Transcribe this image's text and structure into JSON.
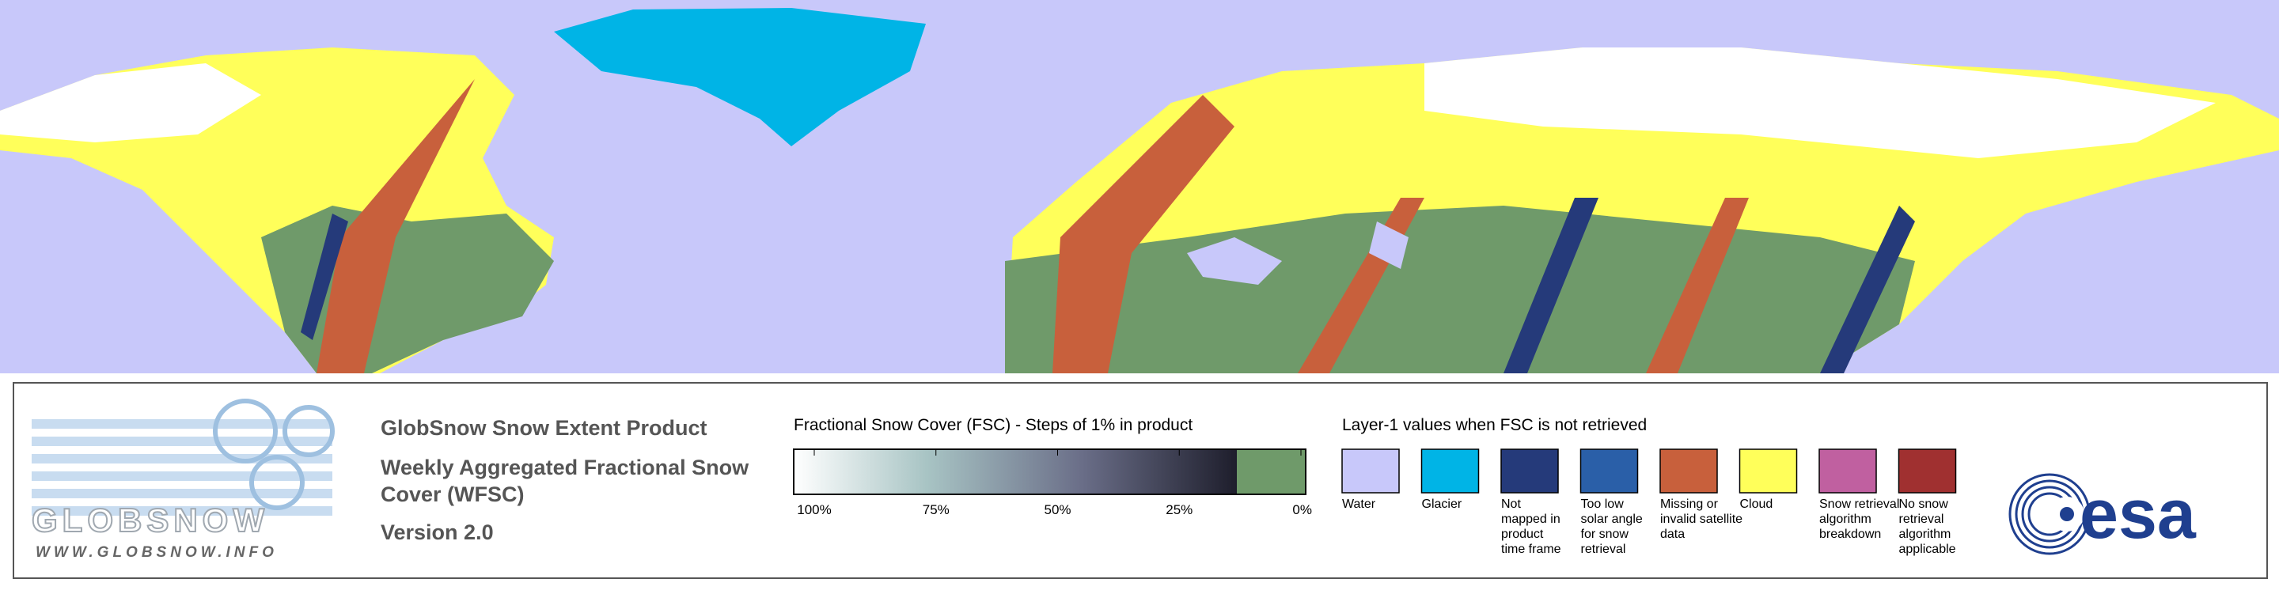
{
  "logo": {
    "name": "GLOBSNOW",
    "url": "WWW.GLOBSNOW.INFO"
  },
  "product": {
    "title": "GlobSnow Snow Extent Product",
    "subtitle_lines": [
      "Weekly Aggregated Fractional Snow",
      "Cover (WFSC)"
    ],
    "version": "Version 2.0"
  },
  "fsc_legend": {
    "title": "Fractional Snow Cover (FSC) - Steps of 1% in product",
    "ticks": [
      "100%",
      "75%",
      "50%",
      "25%",
      "0%"
    ]
  },
  "layer1_legend": {
    "title": "Layer-1 values when FSC is not retrieved",
    "items": [
      {
        "label_lines": [
          "Water"
        ],
        "color": "#c8c8fa"
      },
      {
        "label_lines": [
          "Glacier"
        ],
        "color": "#00b4e6"
      },
      {
        "label_lines": [
          "Not",
          "mapped in",
          "product",
          "time frame"
        ],
        "color": "#253a7a"
      },
      {
        "label_lines": [
          "Too low",
          "solar angle",
          "for snow",
          "retrieval"
        ],
        "color": "#2a5fa8"
      },
      {
        "label_lines": [
          "Missing or",
          "invalid satellite",
          "data"
        ],
        "color": "#c8603c"
      },
      {
        "label_lines": [
          "Cloud"
        ],
        "color": "#ffff5a"
      },
      {
        "label_lines": [
          "Snow retrieval",
          "algorithm",
          "breakdown"
        ],
        "color": "#c060a0"
      },
      {
        "label_lines": [
          "No snow",
          "retrieval",
          "algorithm",
          "applicable"
        ],
        "color": "#a03030"
      }
    ]
  },
  "esa_logo": "esa"
}
